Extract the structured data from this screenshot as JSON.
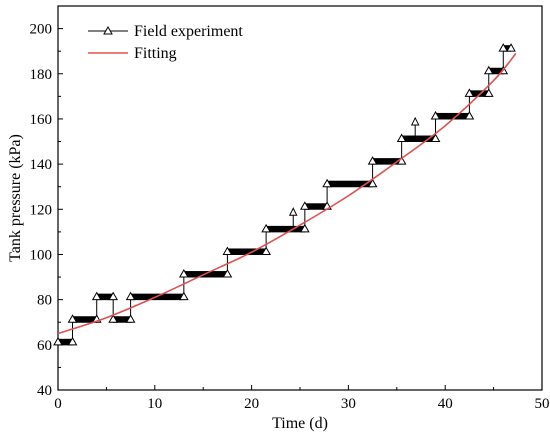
{
  "chart_data": {
    "type": "line",
    "title": "",
    "xlabel": "Time (d)",
    "ylabel": "Tank pressure (kPa)",
    "xlim": [
      0,
      50
    ],
    "ylim": [
      40,
      210
    ],
    "x_ticks": [
      0,
      10,
      20,
      30,
      40,
      50
    ],
    "y_ticks": [
      40,
      60,
      80,
      100,
      120,
      140,
      160,
      180,
      200
    ],
    "grid": false,
    "legend_position": "top-left",
    "series": [
      {
        "name": "Field experiment",
        "style": "step line with open triangle markers",
        "color": "#000000",
        "steps": [
          {
            "x0": 0.0,
            "x1": 1.5,
            "y": 60
          },
          {
            "x0": 1.5,
            "x1": 4.0,
            "y": 70
          },
          {
            "x0": 4.0,
            "x1": 5.7,
            "y": 80
          },
          {
            "x0": 5.7,
            "x1": 7.5,
            "y": 70
          },
          {
            "x0": 7.5,
            "x1": 13.0,
            "y": 80
          },
          {
            "x0": 13.0,
            "x1": 17.5,
            "y": 90
          },
          {
            "x0": 17.5,
            "x1": 21.5,
            "y": 100
          },
          {
            "x0": 21.5,
            "x1": 25.5,
            "y": 110
          },
          {
            "x0": 25.5,
            "x1": 27.8,
            "y": 120
          },
          {
            "x0": 27.8,
            "x1": 32.5,
            "y": 130
          },
          {
            "x0": 32.5,
            "x1": 35.5,
            "y": 140
          },
          {
            "x0": 35.5,
            "x1": 39.0,
            "y": 150
          },
          {
            "x0": 39.0,
            "x1": 42.5,
            "y": 160
          },
          {
            "x0": 42.5,
            "x1": 44.5,
            "y": 170
          },
          {
            "x0": 44.5,
            "x1": 46.0,
            "y": 180
          },
          {
            "x0": 46.0,
            "x1": 46.8,
            "y": 190
          }
        ],
        "spikes": [
          {
            "x": 24.3,
            "y0": 110,
            "y1": 120
          },
          {
            "x": 36.9,
            "y0": 150,
            "y1": 160
          }
        ]
      },
      {
        "name": "Fitting",
        "style": "smooth line",
        "color": "#e05050",
        "x": [
          0,
          5,
          10,
          15,
          20,
          25,
          30,
          35,
          40,
          45,
          47.3
        ],
        "y": [
          65,
          72,
          81,
          91,
          101,
          113,
          126,
          141,
          157,
          177,
          189
        ]
      }
    ]
  }
}
